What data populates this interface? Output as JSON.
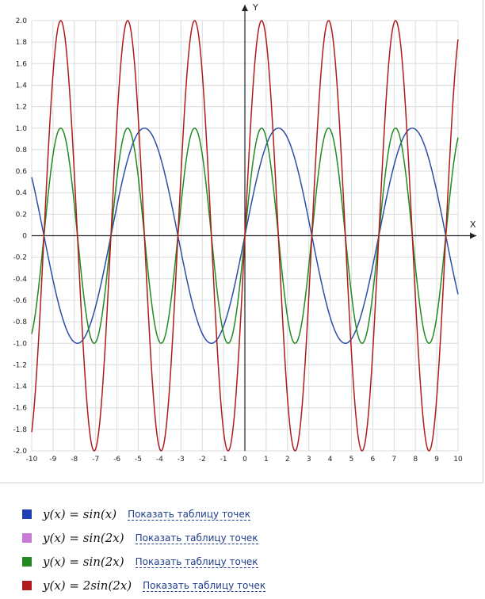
{
  "chart_data": {
    "type": "line",
    "xlabel": "X",
    "ylabel": "Y",
    "xlim": [
      -10,
      10
    ],
    "ylim": [
      -2,
      2
    ],
    "grid": true,
    "x_ticks": [
      "-10",
      "-9",
      "-8",
      "-7",
      "-6",
      "-5",
      "-4",
      "-3",
      "-2",
      "-1",
      "0",
      "1",
      "2",
      "3",
      "4",
      "5",
      "6",
      "7",
      "8",
      "9",
      "10"
    ],
    "y_ticks": [
      "2.0",
      "1.8",
      "1.6",
      "1.4",
      "1.2",
      "1.0",
      "0.8",
      "0.6",
      "0.4",
      "0.2",
      "0",
      "-0.2",
      "-0.4",
      "-0.6",
      "-0.8",
      "-1.0",
      "-1.2",
      "-1.4",
      "-1.6",
      "-1.8",
      "-2.0"
    ],
    "series": [
      {
        "name": "y(x) = sin(x)",
        "function": "sin(x)",
        "amplitude": 1,
        "frequency": 1,
        "color": "#2b4fa8",
        "visible": true
      },
      {
        "name": "y(x) = sin(2x)",
        "function": "sin(2x)",
        "amplitude": 1,
        "frequency": 2,
        "color": "#c77ad6",
        "visible": false
      },
      {
        "name": "y(x) = sin(2x)",
        "function": "sin(2x)",
        "amplitude": 1,
        "frequency": 2,
        "color": "#238a23",
        "visible": true
      },
      {
        "name": "y(x) = 2sin(2x)",
        "function": "2sin(2x)",
        "amplitude": 2,
        "frequency": 2,
        "color": "#b01c1c",
        "visible": true
      }
    ]
  },
  "legend": [
    {
      "formula": "y(x) = sin(x)",
      "link": "Показать таблицу точек",
      "color": "#1f3fb5"
    },
    {
      "formula": "y(x) = sin(2x)",
      "link": "Показать таблицу точек",
      "color": "#c77ad6"
    },
    {
      "formula": "y(x) = sin(2x)",
      "link": "Показать таблицу точек",
      "color": "#238a23"
    },
    {
      "formula": "y(x) = 2sin(2x)",
      "link": "Показать таблицу точек",
      "color": "#b01c1c"
    }
  ]
}
